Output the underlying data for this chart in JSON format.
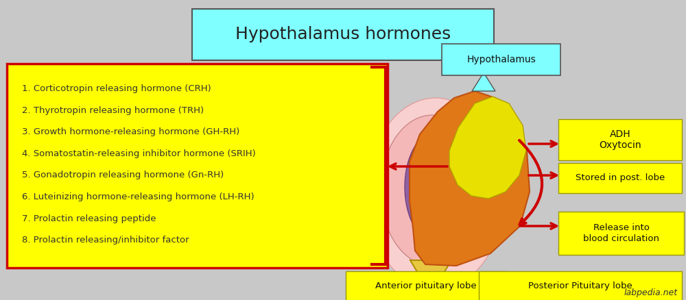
{
  "title": "Hypothalamus hormones",
  "title_bg": "#7fffff",
  "background_color": "#c8c8c8",
  "list_items": [
    "1. Corticotropin releasing hormone (CRH)",
    "2. Thyrotropin releasing hormone (TRH)",
    "3. Growth hormone-releasing hormone (GH-RH)",
    "4. Somatostatin-releasing inhibitor hormone (SRIH)",
    "5. Gonadotropin releasing hormone (Gn-RH)",
    "6. Luteinizing hormone-releasing hormone (LH-RH)",
    "7. Prolactin releasing peptide",
    "8. Prolactin releasing/inhibitor factor"
  ],
  "list_box_color": "#ffff00",
  "list_box_border": "#cc0000",
  "label_bg": "#ffff00",
  "hypothalamus_label": "Hypothalamus",
  "hypothalamus_label_bg": "#7fffff",
  "adh_label": "ADH\nOxytocin",
  "stored_label": "Stored in post. lobe",
  "release_label": "Release into\nblood circulation",
  "anterior_label": "Anterior pituitary lobe",
  "posterior_label": "Posterior Pituitary lobe",
  "watermark": "labpedia.net",
  "arrow_color": "#cc0000",
  "pink_lobe_color": "#f5b8b8",
  "big_pink_color": "#f9d0d0",
  "purple_color": "#9060a0",
  "orange_color": "#e07818",
  "orange_edge": "#c05010",
  "yellow_shape_color": "#e8e000",
  "yellow_shape_edge": "#b0a000",
  "ant_bottom_color": "#e8c840",
  "ant_bottom_edge": "#b09000"
}
